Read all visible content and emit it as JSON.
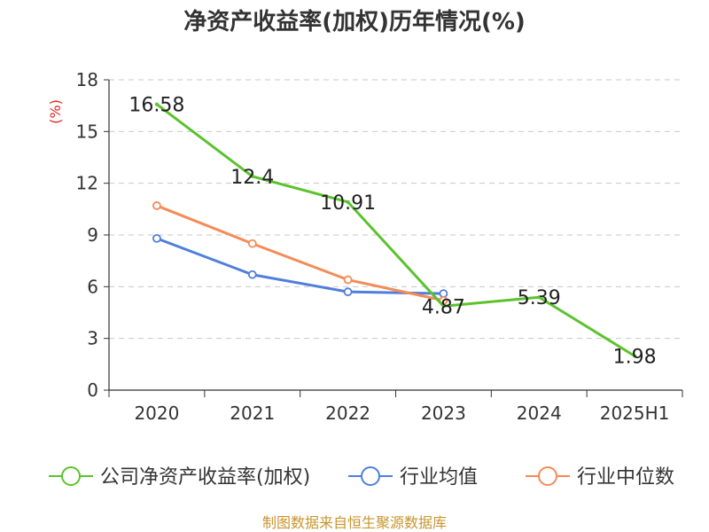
{
  "chart_data": {
    "type": "line",
    "title": "净资产收益率(加权)历年情况(%)",
    "ylabel": "(%)",
    "xlabel": "",
    "categories": [
      "2020",
      "2021",
      "2022",
      "2023",
      "2024",
      "2025H1"
    ],
    "yticks": [
      0,
      3,
      6,
      9,
      12,
      15,
      18
    ],
    "ylim": [
      0,
      18
    ],
    "grid": true,
    "legend_position": "bottom",
    "series": [
      {
        "name": "公司净资产收益率(加权)",
        "color": "#5cc22e",
        "values": [
          16.58,
          12.4,
          10.91,
          4.87,
          5.39,
          1.98
        ],
        "labels": [
          "16.58",
          "12.4",
          "10.91",
          "4.87",
          "5.39",
          "1.98"
        ]
      },
      {
        "name": "行业均值",
        "color": "#4f7fdb",
        "values": [
          8.8,
          6.7,
          5.7,
          5.6,
          null,
          null
        ]
      },
      {
        "name": "行业中位数",
        "color": "#f58b56",
        "values": [
          10.7,
          8.5,
          6.4,
          5.2,
          null,
          null
        ]
      }
    ]
  },
  "source": "制图数据来自恒生聚源数据库"
}
